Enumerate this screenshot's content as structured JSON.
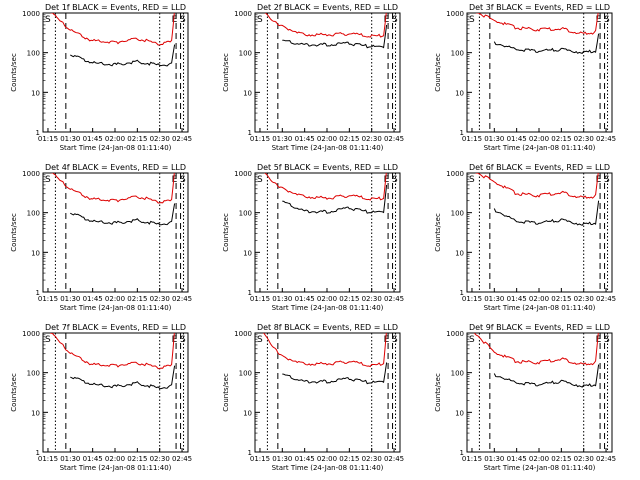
{
  "colors": {
    "events": "#000000",
    "lld": "#dd0000",
    "axis": "#000000",
    "background": "#ffffff"
  },
  "common": {
    "xlabel": "Start Time (24-Jan-08 01:11:40)",
    "ylabel": "Counts/sec",
    "x_tick_labels": [
      "01:15",
      "01:30",
      "01:45",
      "02:00",
      "02:15",
      "02:30",
      "02:45"
    ],
    "y_tick_labels": [
      "1",
      "10",
      "100",
      "1000"
    ],
    "marker_e": "E",
    "marker_s": "S"
  },
  "chart_data": [
    {
      "type": "line",
      "title": "Det 1f BLACK = Events, RED = LLD",
      "x": [
        "01:15",
        "01:30",
        "01:45",
        "02:00",
        "02:15",
        "02:30",
        "02:38",
        "02:40"
      ],
      "xlim": [
        "01:11:40",
        "02:49:00"
      ],
      "ylim": [
        1,
        1000
      ],
      "yscale": "log",
      "series": [
        {
          "name": "Events",
          "values": [
            null,
            90,
            55,
            50,
            60,
            48,
            50,
            160
          ]
        },
        {
          "name": "LLD",
          "values": [
            1200,
            360,
            200,
            180,
            230,
            160,
            190,
            1200
          ]
        }
      ]
    },
    {
      "type": "line",
      "title": "Det 2f BLACK = Events, RED = LLD",
      "x": [
        "01:15",
        "01:30",
        "01:45",
        "02:00",
        "02:15",
        "02:30",
        "02:38",
        "02:40"
      ],
      "xlim": [
        "01:11:40",
        "02:49:00"
      ],
      "ylim": [
        1,
        1000
      ],
      "yscale": "log",
      "series": [
        {
          "name": "Events",
          "values": [
            null,
            200,
            160,
            160,
            170,
            140,
            140,
            500
          ]
        },
        {
          "name": "LLD",
          "values": [
            1200,
            450,
            290,
            280,
            300,
            260,
            270,
            1200
          ]
        }
      ]
    },
    {
      "type": "line",
      "title": "Det 3f BLACK = Events, RED = LLD",
      "x": [
        "01:15",
        "01:30",
        "01:45",
        "02:00",
        "02:15",
        "02:30",
        "02:38",
        "02:40"
      ],
      "xlim": [
        "01:11:40",
        "02:49:00"
      ],
      "ylim": [
        1,
        1000
      ],
      "yscale": "log",
      "series": [
        {
          "name": "Events",
          "values": [
            null,
            180,
            120,
            110,
            120,
            100,
            110,
            300
          ]
        },
        {
          "name": "LLD",
          "values": [
            1200,
            650,
            420,
            380,
            400,
            300,
            330,
            1200
          ]
        }
      ]
    },
    {
      "type": "line",
      "title": "Det 4f BLACK = Events, RED = LLD",
      "x": [
        "01:15",
        "01:30",
        "01:45",
        "02:00",
        "02:15",
        "02:30",
        "02:38",
        "02:40"
      ],
      "xlim": [
        "01:11:40",
        "02:49:00"
      ],
      "ylim": [
        1,
        1000
      ],
      "yscale": "log",
      "series": [
        {
          "name": "Events",
          "values": [
            null,
            100,
            60,
            55,
            65,
            50,
            55,
            170
          ]
        },
        {
          "name": "LLD",
          "values": [
            1200,
            380,
            220,
            200,
            260,
            180,
            200,
            1200
          ]
        }
      ]
    },
    {
      "type": "line",
      "title": "Det 5f BLACK = Events, RED = LLD",
      "x": [
        "01:15",
        "01:30",
        "01:45",
        "02:00",
        "02:15",
        "02:30",
        "02:38",
        "02:40"
      ],
      "xlim": [
        "01:11:40",
        "02:49:00"
      ],
      "ylim": [
        1,
        1000
      ],
      "yscale": "log",
      "series": [
        {
          "name": "Events",
          "values": [
            null,
            190,
            110,
            105,
            130,
            100,
            105,
            500
          ]
        },
        {
          "name": "LLD",
          "values": [
            1200,
            400,
            260,
            230,
            270,
            220,
            230,
            1200
          ]
        }
      ]
    },
    {
      "type": "line",
      "title": "Det 6f BLACK = Events, RED = LLD",
      "x": [
        "01:15",
        "01:30",
        "01:45",
        "02:00",
        "02:15",
        "02:30",
        "02:38",
        "02:40"
      ],
      "xlim": [
        "01:11:40",
        "02:49:00"
      ],
      "ylim": [
        1,
        1000
      ],
      "yscale": "log",
      "series": [
        {
          "name": "Events",
          "values": [
            null,
            120,
            60,
            55,
            65,
            50,
            55,
            200
          ]
        },
        {
          "name": "LLD",
          "values": [
            1200,
            600,
            300,
            270,
            320,
            240,
            260,
            1200
          ]
        }
      ]
    },
    {
      "type": "line",
      "title": "Det 7f BLACK = Events, RED = LLD",
      "x": [
        "01:15",
        "01:30",
        "01:45",
        "02:00",
        "02:15",
        "02:30",
        "02:38",
        "02:40"
      ],
      "xlim": [
        "01:11:40",
        "02:49:00"
      ],
      "ylim": [
        1,
        1000
      ],
      "yscale": "log",
      "series": [
        {
          "name": "Events",
          "values": [
            null,
            80,
            50,
            45,
            55,
            40,
            45,
            150
          ]
        },
        {
          "name": "LLD",
          "values": [
            1200,
            300,
            160,
            150,
            180,
            130,
            150,
            1200
          ]
        }
      ]
    },
    {
      "type": "line",
      "title": "Det 8f BLACK = Events, RED = LLD",
      "x": [
        "01:15",
        "01:30",
        "01:45",
        "02:00",
        "02:15",
        "02:30",
        "02:38",
        "02:40"
      ],
      "xlim": [
        "01:11:40",
        "02:49:00"
      ],
      "ylim": [
        1,
        1000
      ],
      "yscale": "log",
      "series": [
        {
          "name": "Events",
          "values": [
            null,
            90,
            60,
            60,
            70,
            55,
            60,
            180
          ]
        },
        {
          "name": "LLD",
          "values": [
            1200,
            250,
            170,
            165,
            190,
            150,
            170,
            1200
          ]
        }
      ]
    },
    {
      "type": "line",
      "title": "Det 9f BLACK = Events, RED = LLD",
      "x": [
        "01:15",
        "01:30",
        "01:45",
        "02:00",
        "02:15",
        "02:30",
        "02:38",
        "02:40"
      ],
      "xlim": [
        "01:11:40",
        "02:49:00"
      ],
      "ylim": [
        1,
        1000
      ],
      "yscale": "log",
      "series": [
        {
          "name": "Events",
          "values": [
            null,
            90,
            55,
            50,
            60,
            45,
            50,
            160
          ]
        },
        {
          "name": "LLD",
          "values": [
            1200,
            330,
            190,
            180,
            220,
            160,
            180,
            1200
          ]
        }
      ]
    }
  ]
}
